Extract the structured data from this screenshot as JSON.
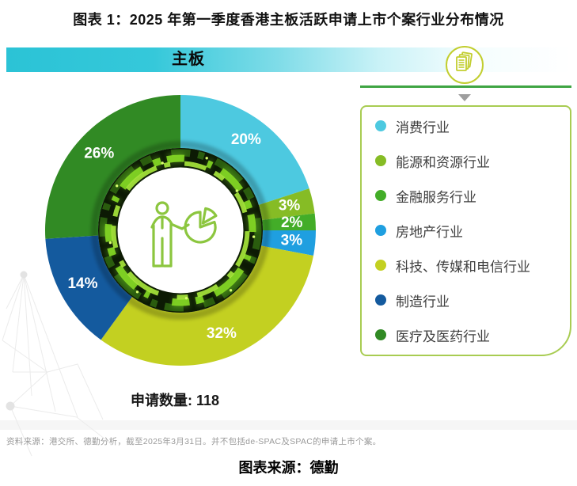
{
  "header": {
    "title": "图表 1：2025 年第一季度香港主板活跃申请上市个案行业分布情况"
  },
  "banner": {
    "label": "主板"
  },
  "stat": {
    "display": "申请数量: 118",
    "label": "申请数量",
    "value": 118
  },
  "footer": {
    "source_note": "资料来源：港交所、德勤分析，截至2025年3月31日。并不包括de-SPAC及SPAC的申请上市个案。",
    "caption": "图表来源：德勤"
  },
  "colors": {
    "banner_teal": "#2bc3d6",
    "separator_green": "#3fa543",
    "legend_border": "#a8cc52",
    "icon_ring_yellow_green": "#c2ce2f",
    "triangle_gray": "#9e9e9e",
    "center_icon_green": "#8cc63f"
  },
  "chart_data": {
    "type": "pie",
    "subtype": "donut",
    "title": "主板",
    "unit": "%",
    "start_angle_deg": 0,
    "direction": "clockwise",
    "inner_radius_ratio": 0.61,
    "legend_position": "right",
    "annotation": "申请数量: 118",
    "series": [
      {
        "name": "消费行业",
        "value": 20,
        "color": "#4dc9e0"
      },
      {
        "name": "能源和资源行业",
        "value": 3,
        "color": "#86bc25"
      },
      {
        "name": "金融服务行业",
        "value": 2,
        "color": "#43ad28"
      },
      {
        "name": "房地产行业",
        "value": 3,
        "color": "#1f9fe0"
      },
      {
        "name": "科技、传媒和电信行业",
        "value": 32,
        "color": "#c3d021"
      },
      {
        "name": "制造行业",
        "value": 14,
        "color": "#145a9e"
      },
      {
        "name": "医疗及医药行业",
        "value": 26,
        "color": "#318a24"
      }
    ],
    "slice_labels": [
      "20%",
      "3%",
      "2%",
      "3%",
      "32%",
      "14%",
      "26%"
    ]
  }
}
